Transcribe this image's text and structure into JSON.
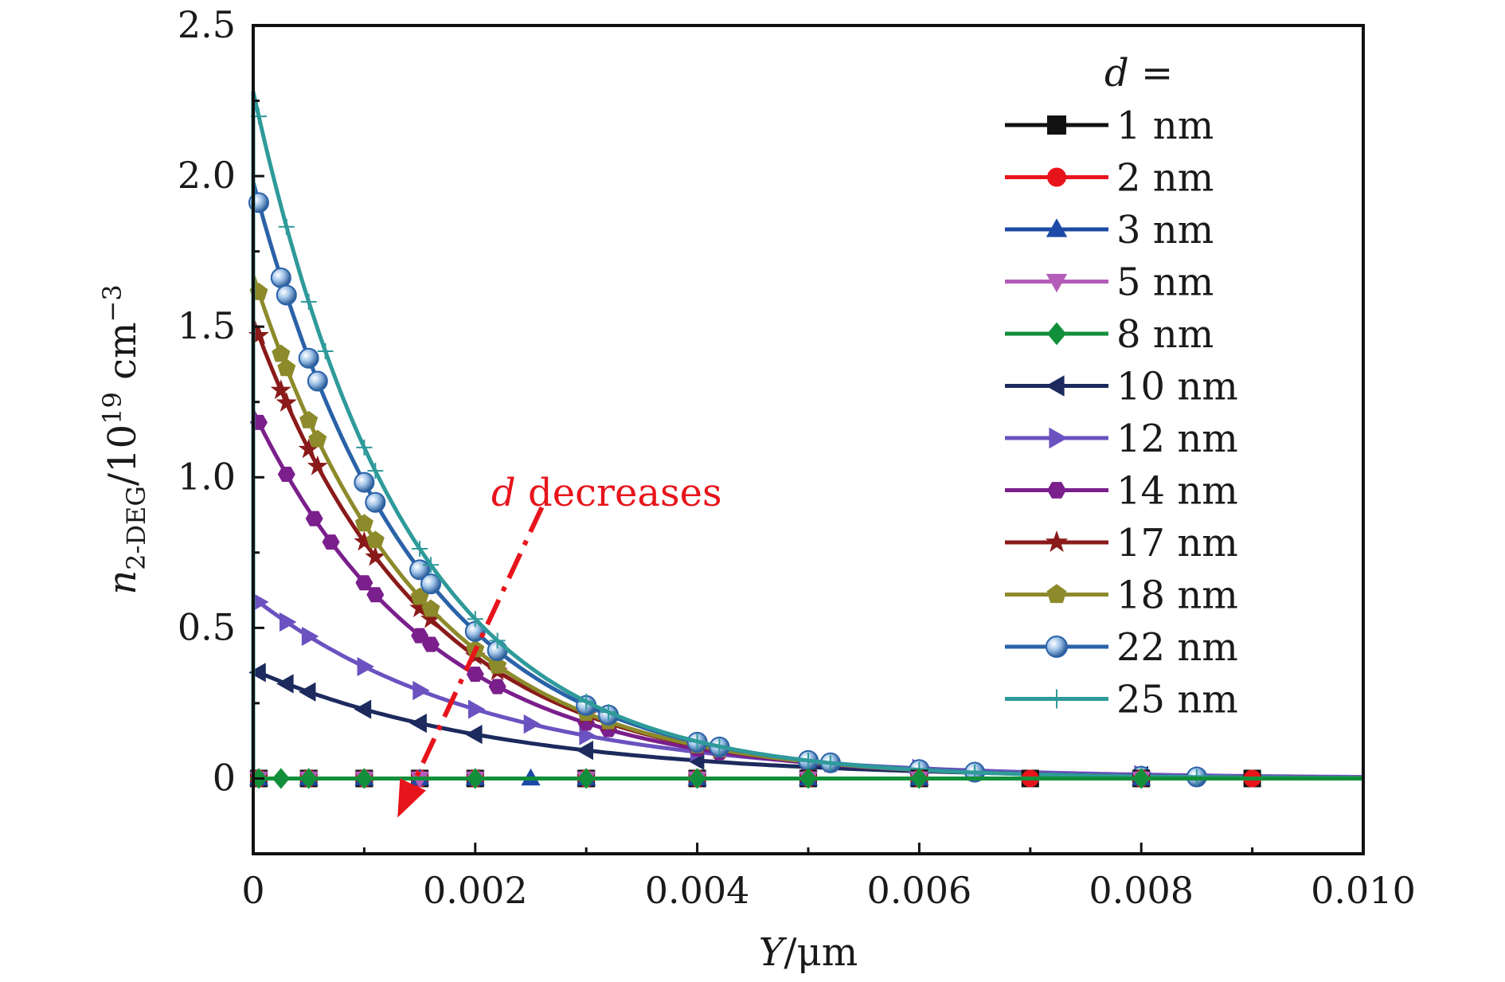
{
  "chart_data": {
    "type": "line",
    "title": "",
    "xlabel": {
      "var": "Y",
      "unit": "/μm"
    },
    "ylabel": {
      "var": "n",
      "sub": "2-DEG",
      "unit": "/10",
      "exp": "19",
      "unit2": " cm",
      "exp2": "−3"
    },
    "xlim": [
      0,
      0.01
    ],
    "ylim": [
      -0.25,
      2.5
    ],
    "xticks": [
      0,
      0.002,
      0.004,
      0.006,
      0.008,
      0.01
    ],
    "xtick_labels": [
      "0",
      "0.002",
      "0.004",
      "0.006",
      "0.008",
      "0.010"
    ],
    "yticks": [
      0,
      0.5,
      1.0,
      1.5,
      2.0,
      2.5
    ],
    "ytick_labels": [
      "0",
      "0.5",
      "1.0",
      "1.5",
      "2.0",
      "2.5"
    ],
    "grid": false,
    "legend": {
      "title_var": "d",
      "title_rest": " =",
      "position": "top-right"
    },
    "annotation": {
      "var": "d",
      "rest": " decreases",
      "color": "#e8141b",
      "from": [
        0.0026,
        0.9
      ],
      "to": [
        0.0013,
        -0.13
      ]
    },
    "series": [
      {
        "name": "1 nm",
        "color": "#111111",
        "marker": "square",
        "a": 0.0,
        "k": 0,
        "marker_x": [
          5e-05,
          0.0005,
          0.001,
          0.0015,
          0.002,
          0.003,
          0.004,
          0.005,
          0.006,
          0.007,
          0.008,
          0.009
        ]
      },
      {
        "name": "2 nm",
        "color": "#e8141b",
        "marker": "circle",
        "a": 0.0,
        "k": 0,
        "marker_x": [
          5e-05,
          0.0005,
          0.001,
          0.0015,
          0.002,
          0.003,
          0.004,
          0.005,
          0.006,
          0.007,
          0.008,
          0.009
        ]
      },
      {
        "name": "3 nm",
        "color": "#1c4aa6",
        "marker": "triangle-up",
        "a": 0.0,
        "k": 0,
        "marker_x": [
          5e-05,
          0.0005,
          0.001,
          0.0015,
          0.002,
          0.0025,
          0.003,
          0.004,
          0.005,
          0.006,
          0.008
        ]
      },
      {
        "name": "5 nm",
        "color": "#b35cb8",
        "marker": "triangle-down",
        "a": 0.0,
        "k": 0,
        "marker_x": [
          5e-05,
          0.0005,
          0.001,
          0.0015,
          0.002,
          0.003,
          0.004,
          0.005,
          0.006,
          0.008
        ]
      },
      {
        "name": "8 nm",
        "color": "#128f3a",
        "marker": "diamond",
        "a": 0.0,
        "k": 0,
        "marker_x": [
          5e-05,
          0.00025,
          0.0005,
          0.001,
          0.002,
          0.003,
          0.004,
          0.005,
          0.006,
          0.008
        ]
      },
      {
        "name": "10 nm",
        "color": "#1c2a5e",
        "marker": "triangle-left",
        "a": 0.36,
        "k": 450,
        "marker_x": [
          5e-05,
          0.0003,
          0.0005,
          0.001,
          0.0015,
          0.002,
          0.003,
          0.004,
          0.005,
          0.006,
          0.008
        ]
      },
      {
        "name": "12 nm",
        "color": "#6a52c0",
        "marker": "triangle-right",
        "a": 0.6,
        "k": 480,
        "marker_x": [
          5e-05,
          0.0003,
          0.0005,
          0.001,
          0.0015,
          0.002,
          0.0025,
          0.003,
          0.004,
          0.005,
          0.006,
          0.008
        ]
      },
      {
        "name": "14 nm",
        "color": "#7a1f8c",
        "marker": "hexagon",
        "a": 1.22,
        "k": 630,
        "marker_x": [
          5e-05,
          0.0003,
          0.00055,
          0.0007,
          0.001,
          0.0011,
          0.0015,
          0.0016,
          0.002,
          0.0022,
          0.003,
          0.0032,
          0.004,
          0.0042,
          0.005,
          0.0052,
          0.006,
          0.0065,
          0.008,
          0.0085
        ]
      },
      {
        "name": "17 nm",
        "color": "#8a1a1a",
        "marker": "star",
        "a": 1.52,
        "k": 660,
        "marker_x": [
          5e-05,
          0.00025,
          0.0003,
          0.0005,
          0.00058,
          0.001,
          0.0011,
          0.0015,
          0.0016,
          0.002,
          0.0022,
          0.003,
          0.0032,
          0.004,
          0.0042,
          0.005,
          0.0052,
          0.006,
          0.0065,
          0.008,
          0.0085
        ]
      },
      {
        "name": "18 nm",
        "color": "#8c8a2a",
        "marker": "pentagon",
        "a": 1.67,
        "k": 680,
        "marker_x": [
          5e-05,
          0.00025,
          0.0003,
          0.0005,
          0.00058,
          0.001,
          0.0011,
          0.0015,
          0.0016,
          0.002,
          0.0022,
          0.003,
          0.0032,
          0.004,
          0.0042,
          0.005,
          0.0052,
          0.006,
          0.0065,
          0.008,
          0.0085
        ]
      },
      {
        "name": "22 nm",
        "color": "#2a62a8",
        "marker": "ball",
        "a": 1.98,
        "k": 700,
        "marker_x": [
          5e-05,
          0.00025,
          0.0003,
          0.0005,
          0.00058,
          0.001,
          0.0011,
          0.0015,
          0.0016,
          0.002,
          0.0022,
          0.003,
          0.0032,
          0.004,
          0.0042,
          0.005,
          0.0052,
          0.006,
          0.0065,
          0.008,
          0.0085
        ]
      },
      {
        "name": "25 nm",
        "color": "#2f9a9a",
        "marker": "plus",
        "a": 2.28,
        "k": 730,
        "marker_x": [
          5e-05,
          0.0003,
          0.0005,
          0.00065,
          0.001,
          0.0011,
          0.0015,
          0.0016,
          0.002,
          0.0022,
          0.003,
          0.0032,
          0.004,
          0.0042,
          0.005,
          0.0052,
          0.006,
          0.0065,
          0.008,
          0.0085
        ]
      }
    ]
  }
}
